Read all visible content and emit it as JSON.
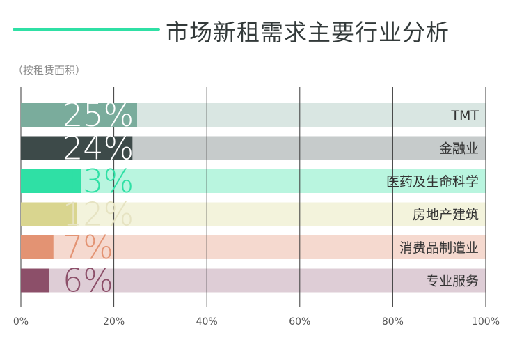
{
  "header": {
    "title": "市场新租需求主要行业分析",
    "subtitle": "（按租赁面积）"
  },
  "chart_data": {
    "type": "bar",
    "orientation": "horizontal",
    "title": "市场新租需求主要行业分析",
    "subtitle": "（按租赁面积）",
    "categories": [
      "TMT",
      "金融业",
      "医药及生命科学",
      "房地产建筑",
      "消费品制造业",
      "专业服务"
    ],
    "values": [
      25,
      24,
      13,
      12,
      7,
      6
    ],
    "value_labels": [
      "25%",
      "24%",
      "13%",
      "12%",
      "7%",
      "6%"
    ],
    "xlim": [
      0,
      100
    ],
    "x_ticks": [
      "0%",
      "20%",
      "40%",
      "60%",
      "80%",
      "100%"
    ],
    "grid": "vertical",
    "colors": {
      "bars": [
        "#7aac9c",
        "#3d4a49",
        "#2fe0a5",
        "#d9d58f",
        "#e39373",
        "#8c4f69"
      ],
      "tracks": [
        "#d9e6e2",
        "#c6cbcb",
        "#b9f5df",
        "#f3f3dc",
        "#f5d9cf",
        "#decdd6"
      ],
      "labels": [
        "#ffffff",
        "#ffffff",
        "#2fe0a5",
        "#e6e3c2",
        "#e39373",
        "#8c4f69"
      ]
    }
  }
}
